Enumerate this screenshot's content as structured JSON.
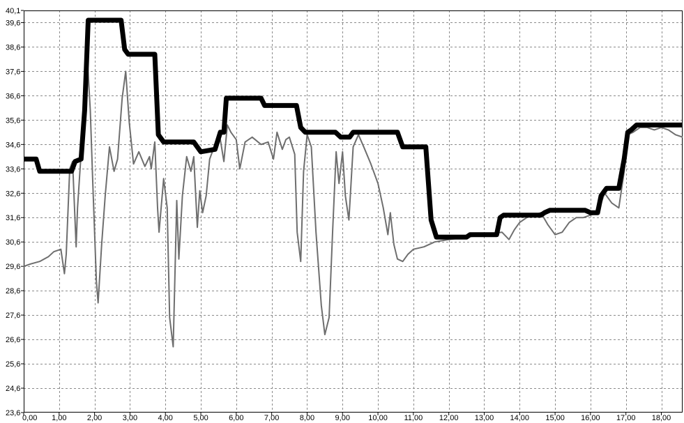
{
  "chart_data": {
    "type": "line",
    "title": "",
    "xlabel": "",
    "ylabel": "",
    "xlim": [
      0,
      18.6
    ],
    "ylim": [
      23.6,
      40.1
    ],
    "grid": true,
    "legend": "none",
    "x_ticks": [
      {
        "value": 0,
        "label": "0,00"
      },
      {
        "value": 1,
        "label": "1,00"
      },
      {
        "value": 2,
        "label": "2,00"
      },
      {
        "value": 3,
        "label": "3,00"
      },
      {
        "value": 4,
        "label": "4,00"
      },
      {
        "value": 5,
        "label": "5,00"
      },
      {
        "value": 6,
        "label": "6,00"
      },
      {
        "value": 7,
        "label": "7,00"
      },
      {
        "value": 8,
        "label": "8,00"
      },
      {
        "value": 9,
        "label": "9,00"
      },
      {
        "value": 10,
        "label": "10,00"
      },
      {
        "value": 11,
        "label": "11,00"
      },
      {
        "value": 12,
        "label": "12,00"
      },
      {
        "value": 13,
        "label": "13,00"
      },
      {
        "value": 14,
        "label": "14,00"
      },
      {
        "value": 15,
        "label": "15,00"
      },
      {
        "value": 16,
        "label": "16,00"
      },
      {
        "value": 17,
        "label": "17,00"
      },
      {
        "value": 18,
        "label": "18,00"
      }
    ],
    "y_ticks": [
      {
        "value": 23.6,
        "label": "23,6"
      },
      {
        "value": 24.6,
        "label": "24,6"
      },
      {
        "value": 25.6,
        "label": "25,6"
      },
      {
        "value": 26.6,
        "label": "26,6"
      },
      {
        "value": 27.6,
        "label": "27,6"
      },
      {
        "value": 28.6,
        "label": "28,6"
      },
      {
        "value": 29.6,
        "label": "29,6"
      },
      {
        "value": 30.6,
        "label": "30,6"
      },
      {
        "value": 31.6,
        "label": "31,6"
      },
      {
        "value": 32.6,
        "label": "32,6"
      },
      {
        "value": 33.6,
        "label": "33,6"
      },
      {
        "value": 34.6,
        "label": "34,6"
      },
      {
        "value": 35.6,
        "label": "35,6"
      },
      {
        "value": 36.6,
        "label": "36,6"
      },
      {
        "value": 37.6,
        "label": "37,6"
      },
      {
        "value": 38.6,
        "label": "38,6"
      },
      {
        "value": 39.6,
        "label": "39,6"
      },
      {
        "value": 40.1,
        "label": "40,1"
      }
    ],
    "series": [
      {
        "color": "#000000",
        "style": "thick",
        "points": [
          [
            0,
            34.0
          ],
          [
            0.35,
            34.0
          ],
          [
            0.45,
            33.5
          ],
          [
            1.35,
            33.5
          ],
          [
            1.45,
            33.9
          ],
          [
            1.62,
            34.0
          ],
          [
            1.72,
            36.0
          ],
          [
            1.82,
            39.7
          ],
          [
            2.75,
            39.7
          ],
          [
            2.85,
            38.5
          ],
          [
            2.95,
            38.3
          ],
          [
            3.7,
            38.3
          ],
          [
            3.8,
            35.0
          ],
          [
            3.95,
            34.7
          ],
          [
            4.8,
            34.7
          ],
          [
            5.0,
            34.3
          ],
          [
            5.4,
            34.4
          ],
          [
            5.55,
            35.1
          ],
          [
            5.65,
            35.1
          ],
          [
            5.72,
            36.5
          ],
          [
            6.7,
            36.5
          ],
          [
            6.8,
            36.2
          ],
          [
            7.7,
            36.2
          ],
          [
            7.82,
            35.3
          ],
          [
            7.95,
            35.1
          ],
          [
            8.8,
            35.1
          ],
          [
            8.95,
            34.9
          ],
          [
            9.2,
            34.9
          ],
          [
            9.3,
            35.1
          ],
          [
            10.55,
            35.1
          ],
          [
            10.7,
            34.5
          ],
          [
            11.35,
            34.5
          ],
          [
            11.5,
            31.5
          ],
          [
            11.65,
            30.8
          ],
          [
            12.5,
            30.8
          ],
          [
            12.6,
            30.9
          ],
          [
            13.35,
            30.9
          ],
          [
            13.45,
            31.6
          ],
          [
            13.55,
            31.7
          ],
          [
            14.6,
            31.7
          ],
          [
            14.7,
            31.8
          ],
          [
            14.85,
            31.9
          ],
          [
            15.85,
            31.9
          ],
          [
            16.0,
            31.8
          ],
          [
            16.2,
            31.8
          ],
          [
            16.3,
            32.5
          ],
          [
            16.45,
            32.8
          ],
          [
            16.8,
            32.8
          ],
          [
            16.95,
            34.0
          ],
          [
            17.05,
            35.1
          ],
          [
            17.15,
            35.2
          ],
          [
            17.3,
            35.4
          ],
          [
            18.6,
            35.4
          ]
        ]
      },
      {
        "color": "#6e6e6e",
        "style": "thin",
        "points": [
          [
            0,
            29.6
          ],
          [
            0.2,
            29.7
          ],
          [
            0.45,
            29.8
          ],
          [
            0.7,
            30.0
          ],
          [
            0.85,
            30.2
          ],
          [
            1.05,
            30.3
          ],
          [
            1.15,
            29.3
          ],
          [
            1.2,
            30.1
          ],
          [
            1.3,
            33.6
          ],
          [
            1.38,
            33.9
          ],
          [
            1.48,
            30.4
          ],
          [
            1.52,
            32.0
          ],
          [
            1.6,
            33.8
          ],
          [
            1.72,
            35.6
          ],
          [
            1.8,
            38.0
          ],
          [
            1.88,
            36.0
          ],
          [
            1.95,
            33.0
          ],
          [
            2.05,
            29.0
          ],
          [
            2.1,
            28.1
          ],
          [
            2.2,
            30.5
          ],
          [
            2.3,
            32.5
          ],
          [
            2.42,
            34.5
          ],
          [
            2.55,
            33.5
          ],
          [
            2.65,
            34.0
          ],
          [
            2.78,
            36.5
          ],
          [
            2.88,
            37.6
          ],
          [
            2.98,
            35.5
          ],
          [
            3.1,
            33.8
          ],
          [
            3.25,
            34.3
          ],
          [
            3.42,
            33.7
          ],
          [
            3.55,
            34.1
          ],
          [
            3.6,
            33.6
          ],
          [
            3.7,
            34.7
          ],
          [
            3.78,
            32.0
          ],
          [
            3.82,
            31.0
          ],
          [
            3.95,
            33.2
          ],
          [
            4.05,
            32.0
          ],
          [
            4.12,
            27.5
          ],
          [
            4.22,
            26.3
          ],
          [
            4.32,
            32.3
          ],
          [
            4.38,
            29.9
          ],
          [
            4.48,
            32.5
          ],
          [
            4.6,
            34.1
          ],
          [
            4.72,
            33.5
          ],
          [
            4.8,
            34.1
          ],
          [
            4.9,
            31.2
          ],
          [
            4.97,
            32.7
          ],
          [
            5.05,
            31.8
          ],
          [
            5.15,
            32.5
          ],
          [
            5.25,
            34.0
          ],
          [
            5.4,
            34.6
          ],
          [
            5.55,
            34.8
          ],
          [
            5.65,
            33.9
          ],
          [
            5.75,
            35.4
          ],
          [
            5.85,
            35.1
          ],
          [
            6.0,
            34.8
          ],
          [
            6.1,
            33.6
          ],
          [
            6.25,
            34.7
          ],
          [
            6.45,
            34.9
          ],
          [
            6.7,
            34.6
          ],
          [
            6.9,
            34.7
          ],
          [
            7.05,
            34.0
          ],
          [
            7.15,
            35.1
          ],
          [
            7.3,
            34.4
          ],
          [
            7.4,
            34.8
          ],
          [
            7.5,
            34.9
          ],
          [
            7.65,
            34.2
          ],
          [
            7.72,
            31.0
          ],
          [
            7.82,
            29.8
          ],
          [
            7.9,
            33.5
          ],
          [
            8.0,
            35.0
          ],
          [
            8.12,
            34.5
          ],
          [
            8.25,
            31.0
          ],
          [
            8.4,
            28.0
          ],
          [
            8.5,
            26.8
          ],
          [
            8.62,
            27.5
          ],
          [
            8.72,
            31.0
          ],
          [
            8.82,
            34.3
          ],
          [
            8.9,
            33.0
          ],
          [
            9.0,
            34.3
          ],
          [
            9.08,
            32.5
          ],
          [
            9.18,
            31.5
          ],
          [
            9.3,
            34.5
          ],
          [
            9.45,
            35.0
          ],
          [
            9.6,
            34.5
          ],
          [
            9.8,
            33.8
          ],
          [
            10.0,
            33.0
          ],
          [
            10.15,
            32.0
          ],
          [
            10.28,
            30.9
          ],
          [
            10.35,
            31.8
          ],
          [
            10.45,
            30.5
          ],
          [
            10.55,
            29.9
          ],
          [
            10.7,
            29.8
          ],
          [
            10.85,
            30.1
          ],
          [
            11.0,
            30.3
          ],
          [
            11.3,
            30.4
          ],
          [
            11.6,
            30.6
          ],
          [
            12.0,
            30.7
          ],
          [
            12.5,
            30.8
          ],
          [
            13.0,
            30.9
          ],
          [
            13.5,
            31.0
          ],
          [
            13.7,
            30.7
          ],
          [
            13.85,
            31.1
          ],
          [
            14.0,
            31.4
          ],
          [
            14.2,
            31.6
          ],
          [
            14.4,
            31.7
          ],
          [
            14.6,
            31.8
          ],
          [
            14.8,
            31.3
          ],
          [
            15.0,
            30.9
          ],
          [
            15.2,
            31.0
          ],
          [
            15.4,
            31.4
          ],
          [
            15.6,
            31.6
          ],
          [
            15.8,
            31.6
          ],
          [
            16.0,
            31.7
          ],
          [
            16.2,
            31.8
          ],
          [
            16.4,
            32.6
          ],
          [
            16.6,
            32.2
          ],
          [
            16.8,
            32.0
          ],
          [
            16.95,
            33.5
          ],
          [
            17.05,
            35.0
          ],
          [
            17.2,
            35.1
          ],
          [
            17.4,
            35.3
          ],
          [
            17.6,
            35.3
          ],
          [
            17.8,
            35.2
          ],
          [
            18.0,
            35.3
          ],
          [
            18.2,
            35.2
          ],
          [
            18.4,
            35.0
          ],
          [
            18.6,
            34.9
          ]
        ]
      }
    ]
  }
}
